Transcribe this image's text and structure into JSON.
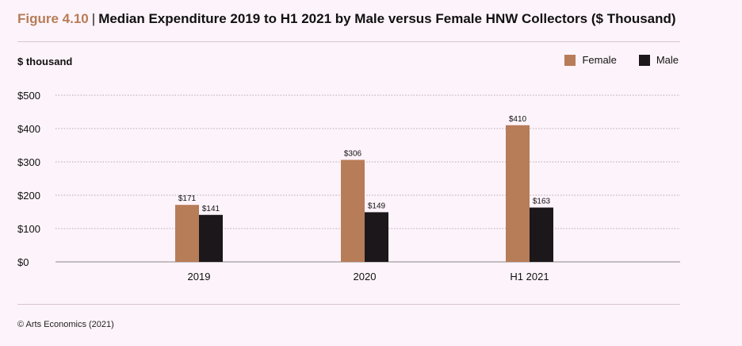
{
  "header": {
    "figure_label": "Figure 4.10",
    "separator": "|",
    "title": "Median Expenditure 2019 to H1 2021 by Male versus Female HNW Collectors ($ Thousand)"
  },
  "footer": {
    "source": "© Arts Economics (2021)"
  },
  "colors": {
    "female": "#b77c58",
    "male": "#1c171b",
    "grid": "#b9a9b3"
  },
  "chart_data": {
    "type": "bar",
    "title": "Median Expenditure 2019 to H1 2021 by Male versus Female HNW Collectors ($ Thousand)",
    "ylabel": "$ thousand",
    "xlabel": "",
    "categories": [
      "2019",
      "2020",
      "H1 2021"
    ],
    "series": [
      {
        "name": "Female",
        "values": [
          171,
          306,
          410
        ],
        "labels": [
          "$171",
          "$306",
          "$410"
        ]
      },
      {
        "name": "Male",
        "values": [
          141,
          149,
          163
        ],
        "labels": [
          "$141",
          "$149",
          "$163"
        ]
      }
    ],
    "ylim": [
      0,
      500
    ],
    "yticks": [
      0,
      100,
      200,
      300,
      400,
      500
    ],
    "ytick_labels": [
      "$0",
      "$100",
      "$200",
      "$300",
      "$400",
      "$500"
    ],
    "grid": true,
    "legend_position": "top-right"
  }
}
